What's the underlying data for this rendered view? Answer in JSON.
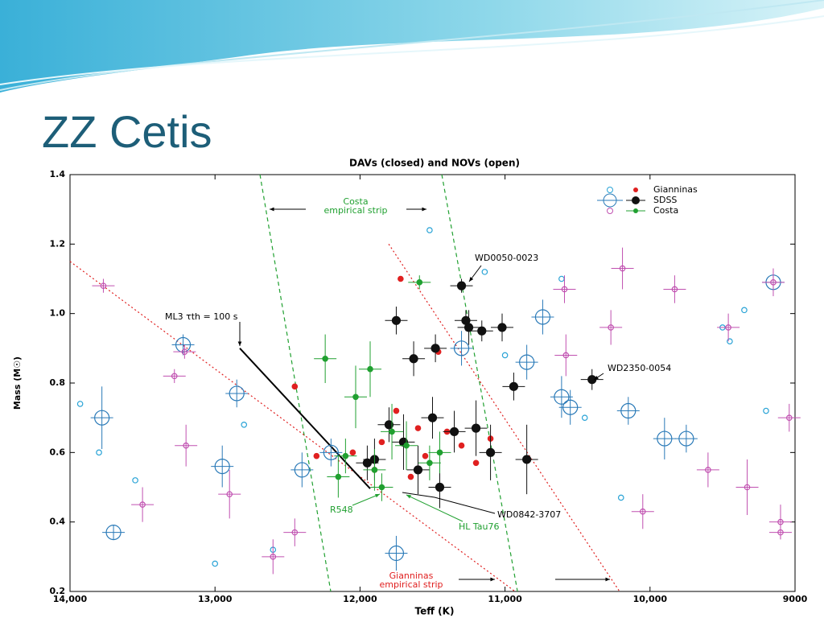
{
  "title": "ZZ Cetis",
  "chart_data": {
    "type": "scatter",
    "title": "DAVs (closed) and NOVs (open)",
    "x_label": "Teff (K)",
    "y_label": "Mass (M☉)",
    "xlim": [
      14000,
      9000
    ],
    "ylim": [
      0.2,
      1.4
    ],
    "xticks": [
      {
        "value": 14000,
        "label": "14,000"
      },
      {
        "value": 13000,
        "label": "13,000"
      },
      {
        "value": 12000,
        "label": "12,000"
      },
      {
        "value": 11000,
        "label": "11,000"
      },
      {
        "value": 10000,
        "label": "10,000"
      },
      9000
    ],
    "yticks": [
      0.2,
      0.4,
      0.6,
      0.8,
      {
        "value": 1,
        "label": "1.0"
      },
      1.2,
      1.4
    ],
    "series": [
      {
        "name": "Gianninas",
        "open_color": "#29a3d6",
        "closed_color": "#e02020",
        "closed": {
          "x": [
            11720,
            11460,
            12450,
            11850,
            11600,
            11300,
            11550,
            12050,
            11200,
            11750,
            11900,
            11400,
            11100,
            12300,
            11650
          ],
          "y": [
            1.1,
            0.89,
            0.79,
            0.63,
            0.67,
            0.62,
            0.59,
            0.6,
            0.57,
            0.72,
            0.55,
            0.66,
            0.64,
            0.59,
            0.53
          ]
        },
        "open": {
          "x": [
            11520,
            11140,
            10610,
            9350,
            9450,
            13930,
            13550,
            12600,
            10450,
            9200,
            13000,
            9500,
            11000,
            13800,
            10200,
            12800
          ],
          "y": [
            1.24,
            1.12,
            1.1,
            1.01,
            0.92,
            0.74,
            0.52,
            0.32,
            0.7,
            0.72,
            0.28,
            0.96,
            0.88,
            0.6,
            0.47,
            0.68
          ]
        }
      },
      {
        "name": "SDSS",
        "open_color": "#2a7ab8",
        "closed_color": "#111111",
        "closed": {
          "x": [
            11300,
            11750,
            11270,
            11160,
            11020,
            11630,
            11480,
            11250,
            10400,
            10940,
            11800,
            11500,
            11700,
            11350,
            11900,
            11100,
            11600,
            11450,
            11200,
            11950,
            10850
          ],
          "y": [
            1.08,
            0.98,
            0.98,
            0.95,
            0.96,
            0.87,
            0.9,
            0.96,
            0.81,
            0.79,
            0.68,
            0.7,
            0.63,
            0.66,
            0.58,
            0.6,
            0.55,
            0.5,
            0.67,
            0.57,
            0.58
          ],
          "yerr": [
            0.02,
            0.04,
            0.03,
            0.03,
            0.04,
            0.05,
            0.04,
            0.05,
            0.03,
            0.04,
            0.05,
            0.06,
            0.08,
            0.06,
            0.06,
            0.08,
            0.07,
            0.06,
            0.08,
            0.05,
            0.1
          ]
        },
        "open": {
          "x": [
            13220,
            12850,
            13780,
            10740,
            11300,
            10610,
            10550,
            9900,
            9750,
            9150,
            12200,
            11750,
            13700,
            10850,
            10150,
            12400,
            12950
          ],
          "y": [
            0.91,
            0.77,
            0.7,
            0.99,
            0.9,
            0.76,
            0.73,
            0.64,
            0.64,
            1.09,
            0.6,
            0.31,
            0.37,
            0.86,
            0.72,
            0.55,
            0.56
          ],
          "yerr": [
            0.03,
            0.04,
            0.09,
            0.05,
            0.05,
            0.06,
            0.05,
            0.06,
            0.04,
            0.02,
            0.04,
            0.05,
            0.02,
            0.05,
            0.04,
            0.05,
            0.06
          ]
        }
      },
      {
        "name": "Costa",
        "open_color": "#c050b0",
        "closed_color": "#20a030",
        "closed": {
          "x": [
            11590,
            12240,
            11930,
            12030,
            11780,
            11680,
            11450,
            11900,
            12100,
            11520,
            11850,
            12150
          ],
          "y": [
            1.09,
            0.87,
            0.84,
            0.76,
            0.66,
            0.62,
            0.6,
            0.55,
            0.59,
            0.57,
            0.5,
            0.53
          ],
          "yerr": [
            0.02,
            0.07,
            0.08,
            0.09,
            0.08,
            0.07,
            0.06,
            0.06,
            0.05,
            0.05,
            0.04,
            0.06
          ]
        },
        "open": {
          "x": [
            13770,
            13210,
            13280,
            10190,
            9830,
            9460,
            9150,
            10590,
            10580,
            10270,
            9600,
            9330,
            9100,
            13200,
            12900,
            12450,
            10050,
            9040,
            13500,
            12600,
            9100
          ],
          "y": [
            1.08,
            0.89,
            0.82,
            1.13,
            1.07,
            0.96,
            1.09,
            1.07,
            0.88,
            0.96,
            0.55,
            0.5,
            0.4,
            0.62,
            0.48,
            0.37,
            0.43,
            0.7,
            0.45,
            0.3,
            0.37
          ],
          "yerr": [
            0.02,
            0.02,
            0.02,
            0.06,
            0.04,
            0.04,
            0.04,
            0.04,
            0.06,
            0.05,
            0.05,
            0.08,
            0.05,
            0.06,
            0.07,
            0.04,
            0.05,
            0.04,
            0.05,
            0.05,
            0.02
          ]
        }
      }
    ],
    "lines": [
      {
        "color": "#20a030",
        "style": "dashed",
        "x": [
          12690,
          12202
        ],
        "y": [
          1.4,
          0.2
        ]
      },
      {
        "color": "#20a030",
        "style": "dashed",
        "x": [
          11436,
          10914
        ],
        "y": [
          1.4,
          0.2
        ]
      },
      {
        "color": "#e02020",
        "style": "dotted",
        "x": [
          14000,
          10931
        ],
        "y": [
          1.15,
          0.2
        ]
      },
      {
        "color": "#e02020",
        "style": "dotted",
        "x": [
          11802,
          10210
        ],
        "y": [
          1.2,
          0.2
        ]
      },
      {
        "color": "#000000",
        "style": "solid",
        "x": [
          12829,
          11930
        ],
        "y": [
          0.9,
          0.496
        ]
      }
    ],
    "annotations": [
      {
        "text": "Costa",
        "color": "#20a030"
      },
      {
        "text": "empirical strip",
        "color": "#20a030"
      },
      {
        "text": "WD0050-0023",
        "color": "#000000"
      },
      {
        "text": "ML3 τth = 100 s",
        "color": "#000000"
      },
      {
        "text": "WD2350-0054",
        "color": "#000000"
      },
      {
        "text": "R548",
        "color": "#20a030"
      },
      {
        "text": "HL Tau76",
        "color": "#20a030"
      },
      {
        "text": "WD0842-3707",
        "color": "#000000"
      },
      {
        "text": "Gianninas",
        "color": "#e02020"
      },
      {
        "text": "empirical strip",
        "color": "#e02020"
      }
    ]
  }
}
